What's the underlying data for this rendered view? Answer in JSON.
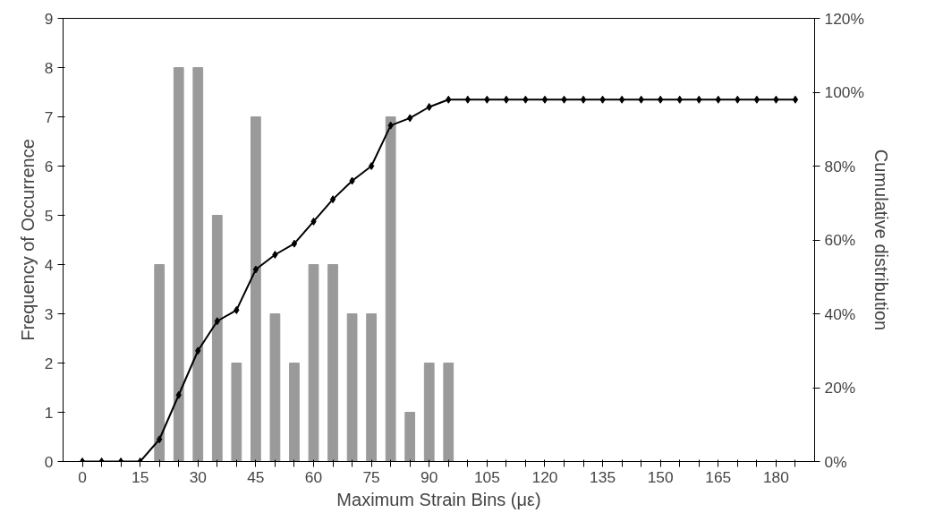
{
  "chart_data": {
    "type": "bar",
    "xlabel": "Maximum Strain Bins (με)",
    "ylabel": "Frequency of Occurrence",
    "y2label": "Cumulative distribution",
    "categories": [
      "0",
      null,
      null,
      "15",
      null,
      null,
      "30",
      null,
      null,
      "45",
      null,
      null,
      "60",
      null,
      null,
      "75",
      null,
      null,
      "90",
      null,
      null,
      "105",
      null,
      null,
      "120",
      null,
      null,
      "135",
      null,
      null,
      "150",
      null,
      null,
      "165",
      null,
      null,
      "180",
      null
    ],
    "series": [
      {
        "color": "#9a9a9a",
        "values": [
          0,
          0,
          0,
          0,
          4,
          8,
          8,
          5,
          2,
          7,
          3,
          2,
          4,
          4,
          3,
          3,
          7,
          1,
          2,
          2,
          0,
          0,
          0,
          0,
          0,
          0,
          0,
          0,
          0,
          0,
          0,
          0,
          0,
          0,
          0,
          0,
          0,
          0
        ]
      },
      {
        "type": "line",
        "axis": "y2",
        "color": "#000000",
        "marker": "diamond",
        "values": [
          0,
          0,
          0,
          0,
          6,
          18,
          30,
          38,
          41,
          52,
          56,
          59,
          65,
          71,
          76,
          80,
          91,
          93,
          96,
          98,
          98,
          98,
          98,
          98,
          98,
          98,
          98,
          98,
          98,
          98,
          98,
          98,
          98,
          98,
          98,
          98,
          98,
          98
        ]
      }
    ],
    "ylim": [
      0,
      9
    ],
    "yticks": [
      0,
      1,
      2,
      3,
      4,
      5,
      6,
      7,
      8,
      9
    ],
    "y2lim": [
      0,
      120
    ],
    "y2ticks": [
      {
        "value": 0,
        "label": "0%"
      },
      {
        "value": 20,
        "label": "20%"
      },
      {
        "value": 40,
        "label": "40%"
      },
      {
        "value": 60,
        "label": "60%"
      },
      {
        "value": 80,
        "label": "80%"
      },
      {
        "value": 100,
        "label": "100%"
      },
      {
        "value": 120,
        "label": "120%"
      }
    ],
    "grid": false
  }
}
